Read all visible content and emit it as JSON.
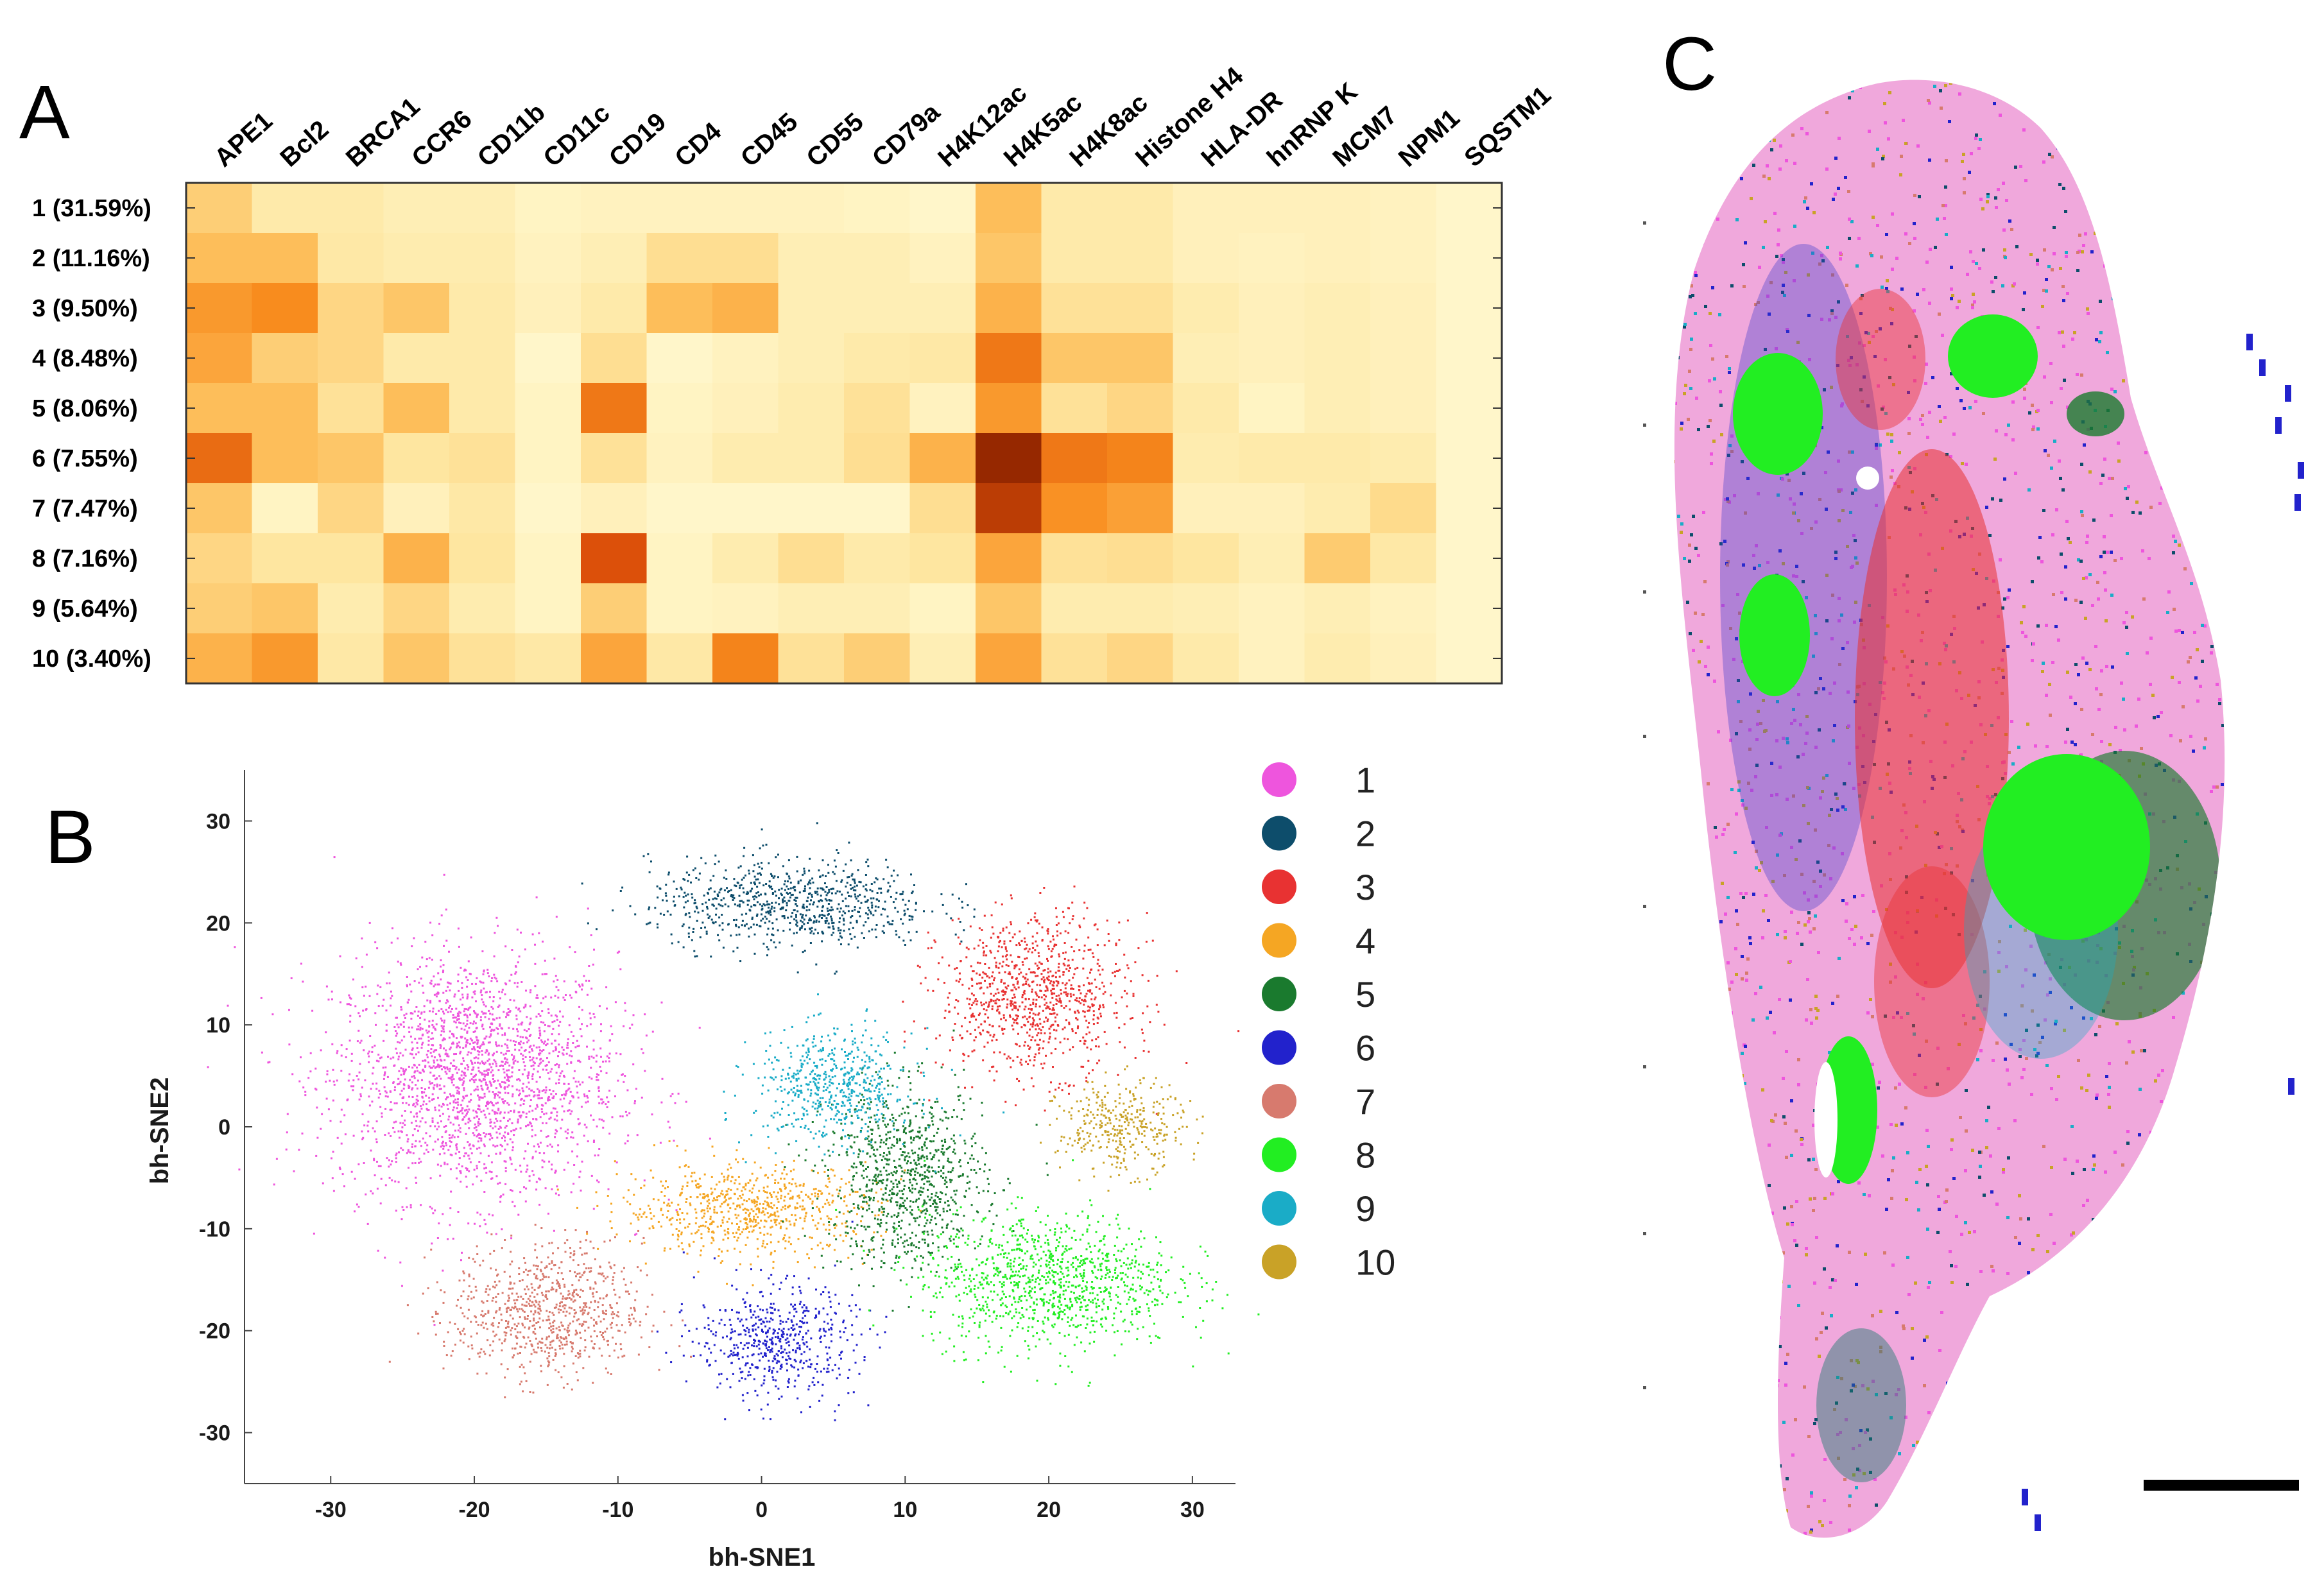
{
  "panels": {
    "a": "A",
    "b": "B",
    "c": "C"
  },
  "heatmap": {
    "columns": [
      "APE1",
      "Bcl2",
      "BRCA1",
      "CCR6",
      "CD11b",
      "CD11c",
      "CD19",
      "CD4",
      "CD45",
      "CD55",
      "CD79a",
      "H4K12ac",
      "H4K5ac",
      "H4K8ac",
      "Histone H4",
      "HLA-DR",
      "hnRNP K",
      "MCM7",
      "NPM1",
      "SQSTM1"
    ],
    "rows": [
      "1 (31.59%)",
      "2 (11.16%)",
      "3 (9.50%)",
      "4 (8.48%)",
      "5 (8.06%)",
      "6 (7.55%)",
      "7 (7.47%)",
      "8 (7.16%)",
      "9 (5.64%)",
      "10 (3.40%)"
    ]
  },
  "chart_data": [
    {
      "type": "heatmap",
      "title": "",
      "x_categories": [
        "APE1",
        "Bcl2",
        "BRCA1",
        "CCR6",
        "CD11b",
        "CD11c",
        "CD19",
        "CD4",
        "CD45",
        "CD55",
        "CD79a",
        "H4K12ac",
        "H4K5ac",
        "H4K8ac",
        "Histone H4",
        "HLA-DR",
        "hnRNP K",
        "MCM7",
        "NPM1",
        "SQSTM1"
      ],
      "y_categories": [
        "1 (31.59%)",
        "2 (11.16%)",
        "3 (9.50%)",
        "4 (8.48%)",
        "5 (8.06%)",
        "6 (7.55%)",
        "7 (7.47%)",
        "8 (7.16%)",
        "9 (5.64%)",
        "10 (3.40%)"
      ],
      "value_range": [
        0,
        1
      ],
      "colormap": "light-yellow to dark-red (relative intensity)",
      "values": [
        [
          0.4,
          0.2,
          0.2,
          0.15,
          0.15,
          0.08,
          0.1,
          0.1,
          0.1,
          0.1,
          0.08,
          0.05,
          0.5,
          0.2,
          0.2,
          0.12,
          0.12,
          0.12,
          0.1,
          0.05
        ],
        [
          0.5,
          0.5,
          0.22,
          0.18,
          0.18,
          0.1,
          0.15,
          0.3,
          0.3,
          0.15,
          0.15,
          0.1,
          0.45,
          0.2,
          0.2,
          0.12,
          0.1,
          0.12,
          0.1,
          0.05
        ],
        [
          0.65,
          0.7,
          0.35,
          0.45,
          0.2,
          0.12,
          0.2,
          0.5,
          0.55,
          0.15,
          0.15,
          0.15,
          0.55,
          0.28,
          0.28,
          0.18,
          0.12,
          0.15,
          0.12,
          0.05
        ],
        [
          0.6,
          0.4,
          0.35,
          0.2,
          0.2,
          0.05,
          0.3,
          0.05,
          0.1,
          0.15,
          0.2,
          0.22,
          0.75,
          0.45,
          0.45,
          0.15,
          0.12,
          0.15,
          0.12,
          0.05
        ],
        [
          0.5,
          0.5,
          0.28,
          0.5,
          0.2,
          0.08,
          0.75,
          0.08,
          0.12,
          0.18,
          0.28,
          0.1,
          0.65,
          0.28,
          0.35,
          0.2,
          0.08,
          0.15,
          0.12,
          0.05
        ],
        [
          0.78,
          0.5,
          0.45,
          0.25,
          0.28,
          0.08,
          0.28,
          0.1,
          0.18,
          0.18,
          0.3,
          0.55,
          1.0,
          0.75,
          0.72,
          0.18,
          0.2,
          0.2,
          0.18,
          0.05
        ],
        [
          0.45,
          0.08,
          0.35,
          0.12,
          0.22,
          0.05,
          0.12,
          0.05,
          0.05,
          0.05,
          0.05,
          0.3,
          0.92,
          0.68,
          0.62,
          0.12,
          0.12,
          0.18,
          0.32,
          0.05
        ],
        [
          0.35,
          0.25,
          0.25,
          0.55,
          0.25,
          0.08,
          0.85,
          0.08,
          0.18,
          0.3,
          0.2,
          0.25,
          0.6,
          0.28,
          0.3,
          0.25,
          0.15,
          0.42,
          0.22,
          0.05
        ],
        [
          0.4,
          0.45,
          0.18,
          0.35,
          0.18,
          0.08,
          0.4,
          0.08,
          0.1,
          0.15,
          0.15,
          0.08,
          0.45,
          0.18,
          0.18,
          0.15,
          0.1,
          0.15,
          0.1,
          0.05
        ],
        [
          0.55,
          0.65,
          0.22,
          0.45,
          0.28,
          0.22,
          0.6,
          0.22,
          0.72,
          0.28,
          0.4,
          0.15,
          0.6,
          0.28,
          0.35,
          0.2,
          0.1,
          0.18,
          0.12,
          0.05
        ]
      ]
    },
    {
      "type": "scatter",
      "title": "",
      "xlabel": "bh-SNE1",
      "ylabel": "bh-SNE2",
      "xlim": [
        -36,
        33
      ],
      "ylim": [
        -35,
        35
      ],
      "xticks": [
        -30,
        -20,
        -10,
        0,
        10,
        20,
        30
      ],
      "yticks": [
        30,
        20,
        10,
        0,
        -10,
        -20,
        -30
      ],
      "legend_position": "right",
      "series": [
        {
          "name": "1",
          "color": "#ee55dd",
          "approx_center": [
            -20,
            5
          ],
          "approx_spread": [
            9,
            11
          ]
        },
        {
          "name": "2",
          "color": "#0d4d6b",
          "approx_center": [
            2,
            22
          ],
          "approx_spread": [
            9,
            4
          ]
        },
        {
          "name": "3",
          "color": "#e83232",
          "approx_center": [
            19,
            13
          ],
          "approx_spread": [
            6,
            7
          ]
        },
        {
          "name": "4",
          "color": "#f5a623",
          "approx_center": [
            -1,
            -8
          ],
          "approx_spread": [
            8,
            4
          ]
        },
        {
          "name": "5",
          "color": "#1a7a2e",
          "approx_center": [
            10,
            -5
          ],
          "approx_spread": [
            5,
            8
          ]
        },
        {
          "name": "6",
          "color": "#2222cc",
          "approx_center": [
            1,
            -21
          ],
          "approx_spread": [
            5,
            5
          ]
        },
        {
          "name": "7",
          "color": "#d77a6e",
          "approx_center": [
            -15,
            -18
          ],
          "approx_spread": [
            6,
            6
          ]
        },
        {
          "name": "8",
          "color": "#22ee22",
          "approx_center": [
            20,
            -15
          ],
          "approx_spread": [
            8,
            6
          ]
        },
        {
          "name": "9",
          "color": "#1aacc7",
          "approx_center": [
            5,
            4
          ],
          "approx_spread": [
            5,
            5
          ]
        },
        {
          "name": "10",
          "color": "#c9a227",
          "approx_center": [
            25,
            0
          ],
          "approx_spread": [
            4,
            4
          ]
        }
      ]
    }
  ],
  "spatial_map": {
    "scale_bar": true,
    "cluster_colors": {
      "1": "#ee55dd",
      "2": "#0d4d6b",
      "3": "#e83232",
      "4": "#f5a623",
      "5": "#1a7a2e",
      "6": "#2222cc",
      "7": "#d77a6e",
      "8": "#22ee22",
      "9": "#1aacc7",
      "10": "#c9a227"
    }
  }
}
